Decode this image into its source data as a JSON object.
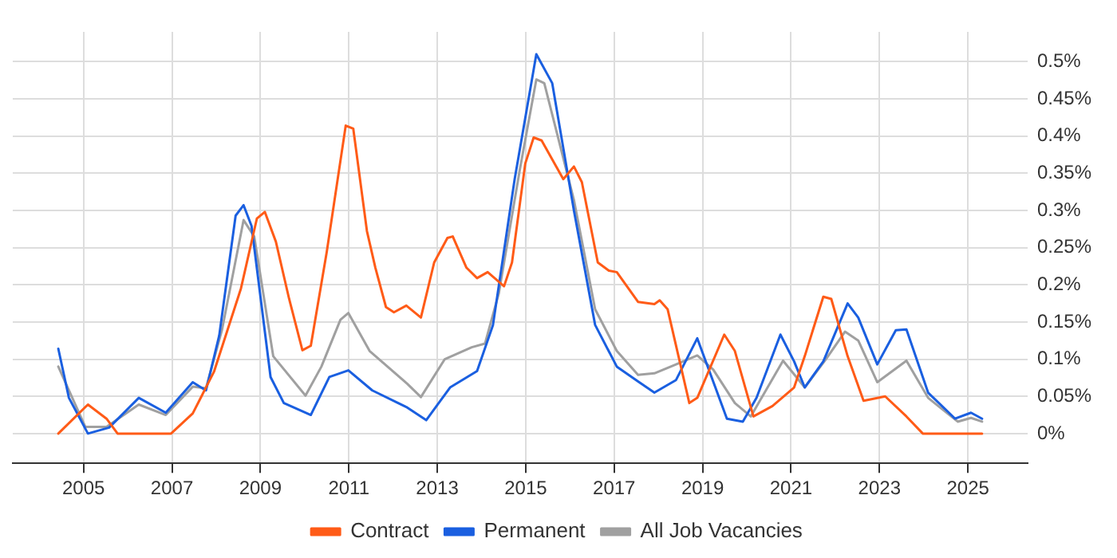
{
  "chart_data": {
    "type": "line",
    "xlim": [
      2003.4,
      2026.35
    ],
    "xticks": [
      2005,
      2007,
      2009,
      2011,
      2013,
      2015,
      2017,
      2019,
      2021,
      2023,
      2025
    ],
    "ylim": [
      -0.04,
      0.54
    ],
    "yticks": [
      {
        "value": 0,
        "label": "0%"
      },
      {
        "value": 0.05,
        "label": "0.05%"
      },
      {
        "value": 0.1,
        "label": "0.1%"
      },
      {
        "value": 0.15,
        "label": "0.15%"
      },
      {
        "value": 0.2,
        "label": "0.2%"
      },
      {
        "value": 0.25,
        "label": "0.25%"
      },
      {
        "value": 0.3,
        "label": "0.3%"
      },
      {
        "value": 0.35,
        "label": "0.35%"
      },
      {
        "value": 0.4,
        "label": "0.4%"
      },
      {
        "value": 0.45,
        "label": "0.45%"
      },
      {
        "value": 0.5,
        "label": "0.5%"
      }
    ],
    "grid": true,
    "legend": "bottom",
    "marker": "none",
    "line_style": "solid",
    "series": [
      {
        "name": "Contract",
        "color": "#ff5b17",
        "x": [
          2004.43,
          2005.1,
          2005.52,
          2005.77,
          2006.98,
          2007.47,
          2007.95,
          2008.56,
          2008.92,
          2009.1,
          2009.35,
          2009.65,
          2009.95,
          2010.14,
          2010.5,
          2010.93,
          2011.1,
          2011.41,
          2011.6,
          2011.84,
          2012.02,
          2012.3,
          2012.63,
          2012.93,
          2013.23,
          2013.35,
          2013.66,
          2013.9,
          2014.14,
          2014.51,
          2014.69,
          2014.99,
          2015.18,
          2015.36,
          2015.85,
          2016.09,
          2016.27,
          2016.63,
          2016.88,
          2017.06,
          2017.54,
          2017.91,
          2018.03,
          2018.21,
          2018.7,
          2018.88,
          2019.49,
          2019.73,
          2020.15,
          2020.58,
          2021.07,
          2021.31,
          2021.73,
          2021.91,
          2022.28,
          2022.64,
          2023.13,
          2023.61,
          2023.98,
          2025.32
        ],
        "values": [
          0,
          0.039,
          0.02,
          0,
          0,
          0.027,
          0.083,
          0.195,
          0.289,
          0.298,
          0.258,
          0.181,
          0.112,
          0.118,
          0.244,
          0.414,
          0.41,
          0.272,
          0.223,
          0.17,
          0.163,
          0.172,
          0.156,
          0.23,
          0.263,
          0.265,
          0.223,
          0.209,
          0.217,
          0.198,
          0.23,
          0.363,
          0.398,
          0.394,
          0.342,
          0.359,
          0.338,
          0.23,
          0.219,
          0.217,
          0.177,
          0.174,
          0.179,
          0.167,
          0.041,
          0.048,
          0.133,
          0.111,
          0.023,
          0.037,
          0.062,
          0.104,
          0.184,
          0.181,
          0.104,
          0.044,
          0.05,
          0.023,
          0,
          0
        ]
      },
      {
        "name": "Permanent",
        "color": "#1a5fe0",
        "x": [
          2004.43,
          2004.67,
          2005.1,
          2005.58,
          2006.25,
          2006.86,
          2007.47,
          2007.77,
          2008.07,
          2008.44,
          2008.62,
          2008.8,
          2009.23,
          2009.53,
          2010.14,
          2010.56,
          2010.99,
          2011.53,
          2012.32,
          2012.75,
          2013.29,
          2013.9,
          2014.26,
          2014.75,
          2015.24,
          2015.6,
          2016.09,
          2016.57,
          2017.06,
          2017.54,
          2017.91,
          2018.4,
          2018.88,
          2019.55,
          2019.91,
          2020.22,
          2020.76,
          2021.07,
          2021.31,
          2021.73,
          2022.28,
          2022.52,
          2022.95,
          2023.37,
          2023.61,
          2024.1,
          2024.71,
          2025.07,
          2025.32
        ],
        "values": [
          0.114,
          0.048,
          0,
          0.008,
          0.048,
          0.028,
          0.069,
          0.058,
          0.132,
          0.293,
          0.307,
          0.279,
          0.076,
          0.041,
          0.025,
          0.076,
          0.085,
          0.058,
          0.035,
          0.018,
          0.062,
          0.084,
          0.146,
          0.342,
          0.51,
          0.471,
          0.3,
          0.146,
          0.09,
          0.07,
          0.055,
          0.072,
          0.128,
          0.02,
          0.016,
          0.048,
          0.133,
          0.097,
          0.062,
          0.097,
          0.175,
          0.156,
          0.093,
          0.139,
          0.14,
          0.055,
          0.02,
          0.028,
          0.02
        ]
      },
      {
        "name": "All Job Vacancies",
        "color": "#a0a0a0",
        "x": [
          2004.43,
          2005.04,
          2005.52,
          2006.25,
          2006.86,
          2007.47,
          2007.77,
          2008.13,
          2008.62,
          2008.86,
          2009.29,
          2010.02,
          2010.38,
          2010.81,
          2010.99,
          2011.47,
          2012.32,
          2012.63,
          2013.17,
          2013.78,
          2014.08,
          2014.39,
          2014.87,
          2015.24,
          2015.42,
          2016.09,
          2016.57,
          2017.06,
          2017.54,
          2017.91,
          2018.4,
          2018.88,
          2019.24,
          2019.73,
          2020.09,
          2020.82,
          2021.31,
          2021.79,
          2022.22,
          2022.52,
          2022.95,
          2023.61,
          2024.1,
          2024.77,
          2025.07,
          2025.32
        ],
        "values": [
          0.09,
          0.009,
          0.009,
          0.039,
          0.025,
          0.063,
          0.061,
          0.139,
          0.287,
          0.265,
          0.104,
          0.051,
          0.09,
          0.153,
          0.162,
          0.111,
          0.067,
          0.049,
          0.1,
          0.116,
          0.121,
          0.188,
          0.356,
          0.476,
          0.471,
          0.314,
          0.167,
          0.111,
          0.079,
          0.081,
          0.093,
          0.105,
          0.086,
          0.041,
          0.023,
          0.098,
          0.062,
          0.1,
          0.137,
          0.125,
          0.069,
          0.098,
          0.048,
          0.016,
          0.021,
          0.016
        ]
      }
    ]
  }
}
